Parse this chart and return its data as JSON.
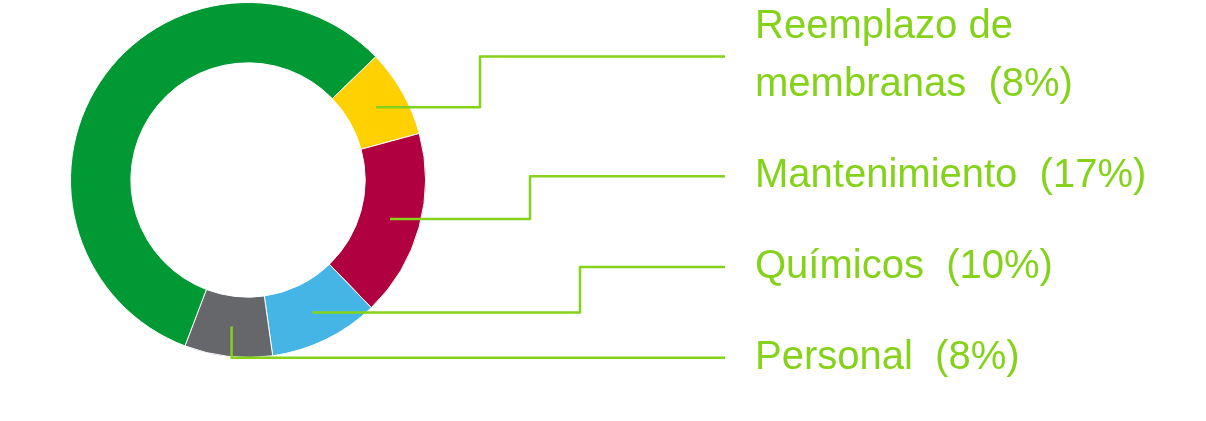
{
  "chart_data": {
    "type": "donut",
    "categories": [
      "Reemplazo de membranas",
      "Mantenimiento",
      "Químicos",
      "Personal",
      null
    ],
    "values": [
      8,
      17,
      10,
      8,
      57
    ],
    "colors": [
      "#ffd100",
      "#b0003f",
      "#45b5e5",
      "#65676b",
      "#009933"
    ],
    "value_labels": [
      "(8%)",
      "(17%)",
      "(10%)",
      "(8%)",
      null
    ]
  }
}
